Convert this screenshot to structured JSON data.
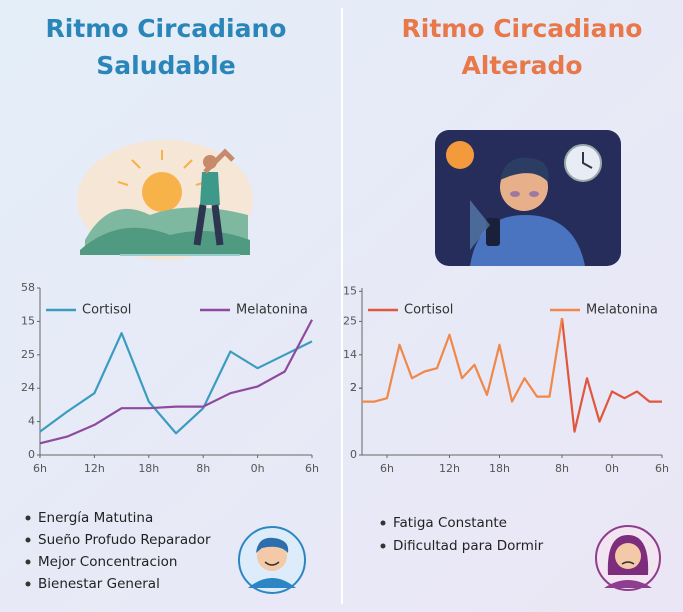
{
  "panels": [
    {
      "title_lines": [
        "Ritmo Circadiano",
        "Saludable"
      ],
      "bullets": [
        "Energía Matutina",
        "Sueño Profudo Reparador",
        "Mejor Concentracion",
        "Bienestar General"
      ]
    },
    {
      "title_lines": [
        "Ritmo Circadiano",
        "Alterado"
      ],
      "bullets": [
        "Fatiga Constante",
        "Dificultad para Dormir"
      ]
    }
  ],
  "chart_data": [
    {
      "type": "line",
      "categories": [
        "6h",
        null,
        "12h",
        null,
        "18h",
        null,
        "8h",
        null,
        "0h",
        null,
        "6h"
      ],
      "series": [
        {
          "name": "Cortisol",
          "color": "#3b9cc0",
          "values": [
            0.7,
            1.3,
            1.85,
            3.65,
            1.6,
            0.65,
            1.4,
            3.1,
            2.6,
            3.0,
            3.4
          ]
        },
        {
          "name": "Melatonina",
          "color": "#8e4a9e",
          "values": [
            0.35,
            0.55,
            0.9,
            1.4,
            1.4,
            1.45,
            1.45,
            1.85,
            2.05,
            2.5,
            4.05
          ]
        }
      ],
      "ylim": [
        0,
        5
      ],
      "yticks": [
        0,
        {
          "value": 1,
          "label": "4"
        },
        {
          "value": 2,
          "label": "24"
        },
        {
          "value": 3,
          "label": "25"
        },
        {
          "value": 4,
          "label": "15"
        },
        {
          "value": 5,
          "label": "58"
        }
      ],
      "grid": false,
      "legend": "top"
    },
    {
      "type": "line",
      "categories": [
        null,
        null,
        "6h",
        null,
        null,
        null,
        null,
        "12h",
        null,
        null,
        null,
        "18h",
        null,
        null,
        null,
        null,
        "8h",
        null,
        null,
        null,
        "0h",
        null,
        null,
        null,
        "6h"
      ],
      "series": [
        {
          "name": "Cortisol",
          "color": "#e0563e",
          "values": [
            null,
            null,
            null,
            null,
            null,
            null,
            null,
            null,
            null,
            null,
            null,
            null,
            null,
            null,
            null,
            null,
            4.1,
            0.7,
            2.3,
            1.0,
            1.9,
            1.7,
            1.9,
            1.6,
            1.6
          ]
        },
        {
          "name": "Melatonina",
          "color": "#f0884a",
          "values": [
            1.6,
            1.6,
            1.7,
            3.3,
            2.3,
            2.5,
            2.6,
            3.6,
            2.3,
            2.7,
            1.8,
            3.3,
            1.6,
            2.3,
            1.75,
            1.75,
            4.1,
            null,
            null,
            null,
            null,
            null,
            null,
            null,
            null
          ]
        }
      ],
      "ylim": [
        0,
        5
      ],
      "yticks": [
        0,
        2,
        {
          "value": 2,
          "label": "2"
        },
        {
          "value": 3,
          "label": "14"
        },
        {
          "value": 4,
          "label": "25"
        },
        {
          "value": 4.9,
          "label": "15"
        }
      ],
      "grid": false,
      "legend": "top"
    }
  ]
}
